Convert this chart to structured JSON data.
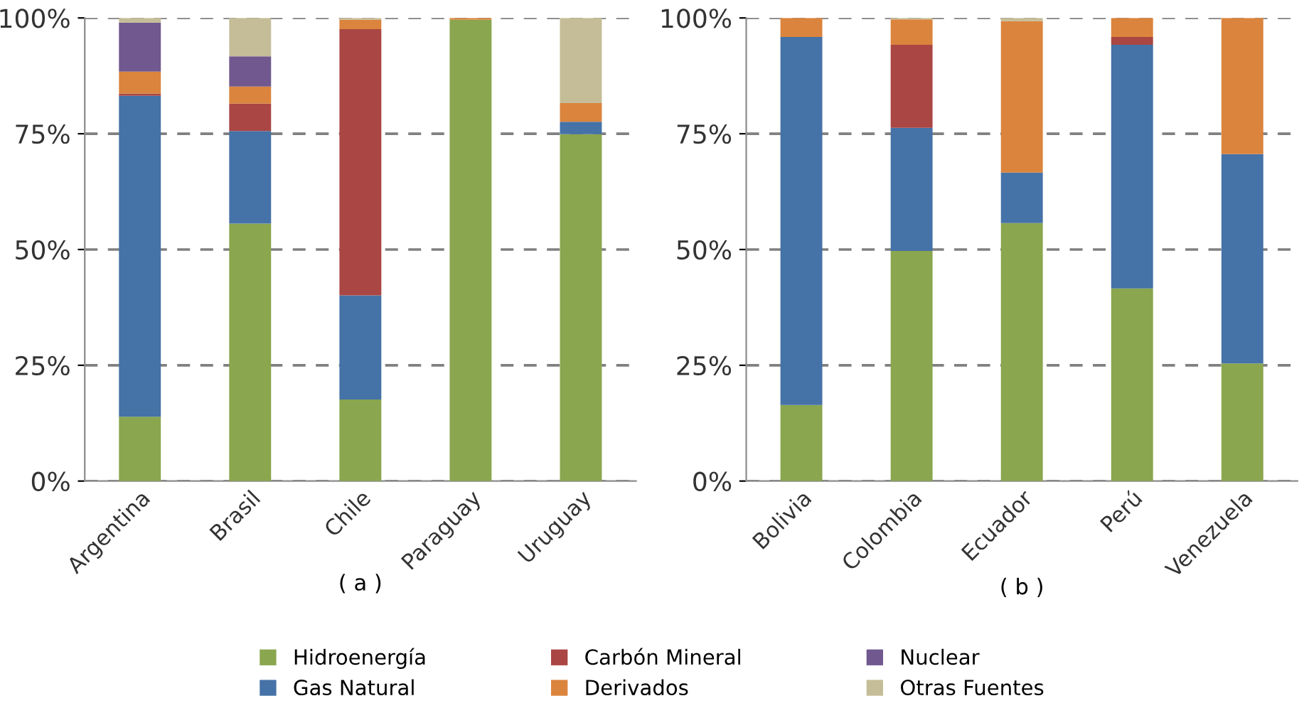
{
  "chart_data": [
    {
      "type": "bar",
      "stacked": true,
      "xlabel": "( a )",
      "categories": [
        "Argentina",
        "Brasil",
        "Chile",
        "Paraguay",
        "Uruguay"
      ],
      "ylim": [
        0,
        100
      ],
      "yticks": [
        {
          "value": 0,
          "label": "0%"
        },
        {
          "value": 25,
          "label": "25%"
        },
        {
          "value": 50,
          "label": "50%"
        },
        {
          "value": 75,
          "label": "75%"
        },
        {
          "value": 100,
          "label": "100%"
        }
      ],
      "grid": "y",
      "legend": "bottom",
      "series": [
        {
          "name": "Hidroenergía",
          "color": "#8aa64e",
          "values": [
            13.9,
            55.6,
            17.6,
            99.6,
            74.9
          ]
        },
        {
          "name": "Gas Natural",
          "color": "#4572a7",
          "values": [
            69.3,
            20.0,
            22.5,
            0,
            2.7
          ]
        },
        {
          "name": "Carbón Mineral",
          "color": "#aa4643",
          "values": [
            0.5,
            5.9,
            57.5,
            0,
            0
          ]
        },
        {
          "name": "Derivados",
          "color": "#db843d",
          "values": [
            4.7,
            3.7,
            2.0,
            0.4,
            4.0
          ]
        },
        {
          "name": "Nuclear",
          "color": "#71588f",
          "values": [
            10.6,
            6.5,
            0,
            0,
            0
          ]
        },
        {
          "name": "Otras Fuentes",
          "color": "#c4bd97",
          "values": [
            1.0,
            8.3,
            0.4,
            0,
            18.4
          ]
        }
      ]
    },
    {
      "type": "bar",
      "stacked": true,
      "xlabel": "( b )",
      "categories": [
        "Bolivia",
        "Colombia",
        "Ecuador",
        "Perú",
        "Venezuela"
      ],
      "ylim": [
        0,
        100
      ],
      "yticks": [
        {
          "value": 0,
          "label": "0%"
        },
        {
          "value": 25,
          "label": "25%"
        },
        {
          "value": 50,
          "label": "50%"
        },
        {
          "value": 75,
          "label": "75%"
        },
        {
          "value": 100,
          "label": "100%"
        }
      ],
      "grid": "y",
      "series": [
        {
          "color": "#8aa64e",
          "values": [
            16.4,
            49.7,
            55.7,
            41.6,
            25.4
          ]
        },
        {
          "color": "#4572a7",
          "values": [
            79.5,
            26.6,
            10.9,
            52.6,
            45.2
          ]
        },
        {
          "color": "#aa4643",
          "values": [
            0,
            17.9,
            0,
            1.7,
            0
          ]
        },
        {
          "color": "#db843d",
          "values": [
            4.1,
            5.5,
            32.7,
            4.1,
            29.4
          ]
        },
        {
          "color": "#71588f",
          "values": [
            0,
            0,
            0,
            0,
            0
          ]
        },
        {
          "color": "#c4bd97",
          "values": [
            0,
            0.3,
            0.7,
            0,
            0
          ]
        }
      ]
    }
  ]
}
